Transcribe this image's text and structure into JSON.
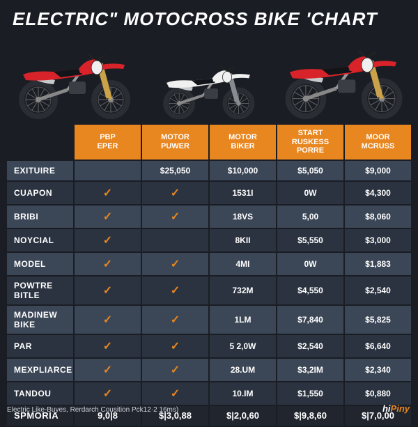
{
  "title": "ELECTRIC\" MOTOCROSS BIKE 'CHART",
  "footnote": "Electric Like-Buyes, Rerdarch Cousition Pck12·2 16ms)",
  "watermark_prefix": "hi",
  "watermark_suffix": "Piny",
  "colors": {
    "page_bg": "#1a1d24",
    "header_bg": "#e8861f",
    "row_odd": "#3b4656",
    "row_even": "#2b3340",
    "footer_row": "#20252e",
    "text": "#ffffff",
    "check": "#e8861f",
    "footnote": "#cfd3da",
    "bike_red": "#d8232a",
    "bike_white": "#f0f0f0",
    "bike_black": "#111418",
    "bike_gold": "#c9a24a",
    "bike_tire": "#2a2d33"
  },
  "bikes": [
    {
      "name": "bike-left",
      "body": "#d8232a",
      "fork": "#c9a24a",
      "scale": 1.0
    },
    {
      "name": "bike-center",
      "body": "#f0f0f0",
      "fork": "#888c92",
      "scale": 0.82
    },
    {
      "name": "bike-right",
      "body": "#d8232a",
      "fork": "#c9a24a",
      "scale": 1.05
    }
  ],
  "table": {
    "columns": [
      "PBP EPER",
      "MOTOR PUWER",
      "MOTOR BIKER",
      "START RUSKESS PORRE",
      "MOOR MCRUSS"
    ],
    "rows": [
      {
        "label": "EXITUIRE",
        "cells": [
          "",
          "$25,050",
          "$10,000",
          "$5,050",
          "$9,000"
        ]
      },
      {
        "label": "CUAPON",
        "cells": [
          "check",
          "check",
          "1531I",
          "0W",
          "$4,300"
        ]
      },
      {
        "label": "BRIBI",
        "cells": [
          "check",
          "check",
          "18VS",
          "5,00",
          "$8,060"
        ]
      },
      {
        "label": "NOYCIAL",
        "cells": [
          "check",
          "",
          "8KII",
          "$5,550",
          "$3,000"
        ]
      },
      {
        "label": "MODEL",
        "cells": [
          "check",
          "check",
          "4MI",
          "0W",
          "$1,883"
        ]
      },
      {
        "label": "POWTRE BITLE",
        "cells": [
          "check",
          "check",
          "732M",
          "$4,550",
          "$2,540"
        ]
      },
      {
        "label": "MADINEW BIKE",
        "cells": [
          "check",
          "check",
          "1LM",
          "$7,840",
          "$5,825"
        ]
      },
      {
        "label": "PAR",
        "cells": [
          "check",
          "check",
          "5 2,0W",
          "$2,540",
          "$6,640"
        ]
      },
      {
        "label": "MEXPLIARCE",
        "cells": [
          "check",
          "check",
          "28.UM",
          "$3,2IM",
          "$2,340"
        ]
      },
      {
        "label": "TANDOU",
        "cells": [
          "check",
          "check",
          "10.IM",
          "$1,550",
          "$0,880"
        ]
      }
    ],
    "footer": {
      "label": "SPMORIA",
      "cells": [
        "9,0|8",
        "$|3,0,88",
        "$|2,0,60",
        "$|9,8,60",
        "$|7,0,00"
      ]
    }
  }
}
